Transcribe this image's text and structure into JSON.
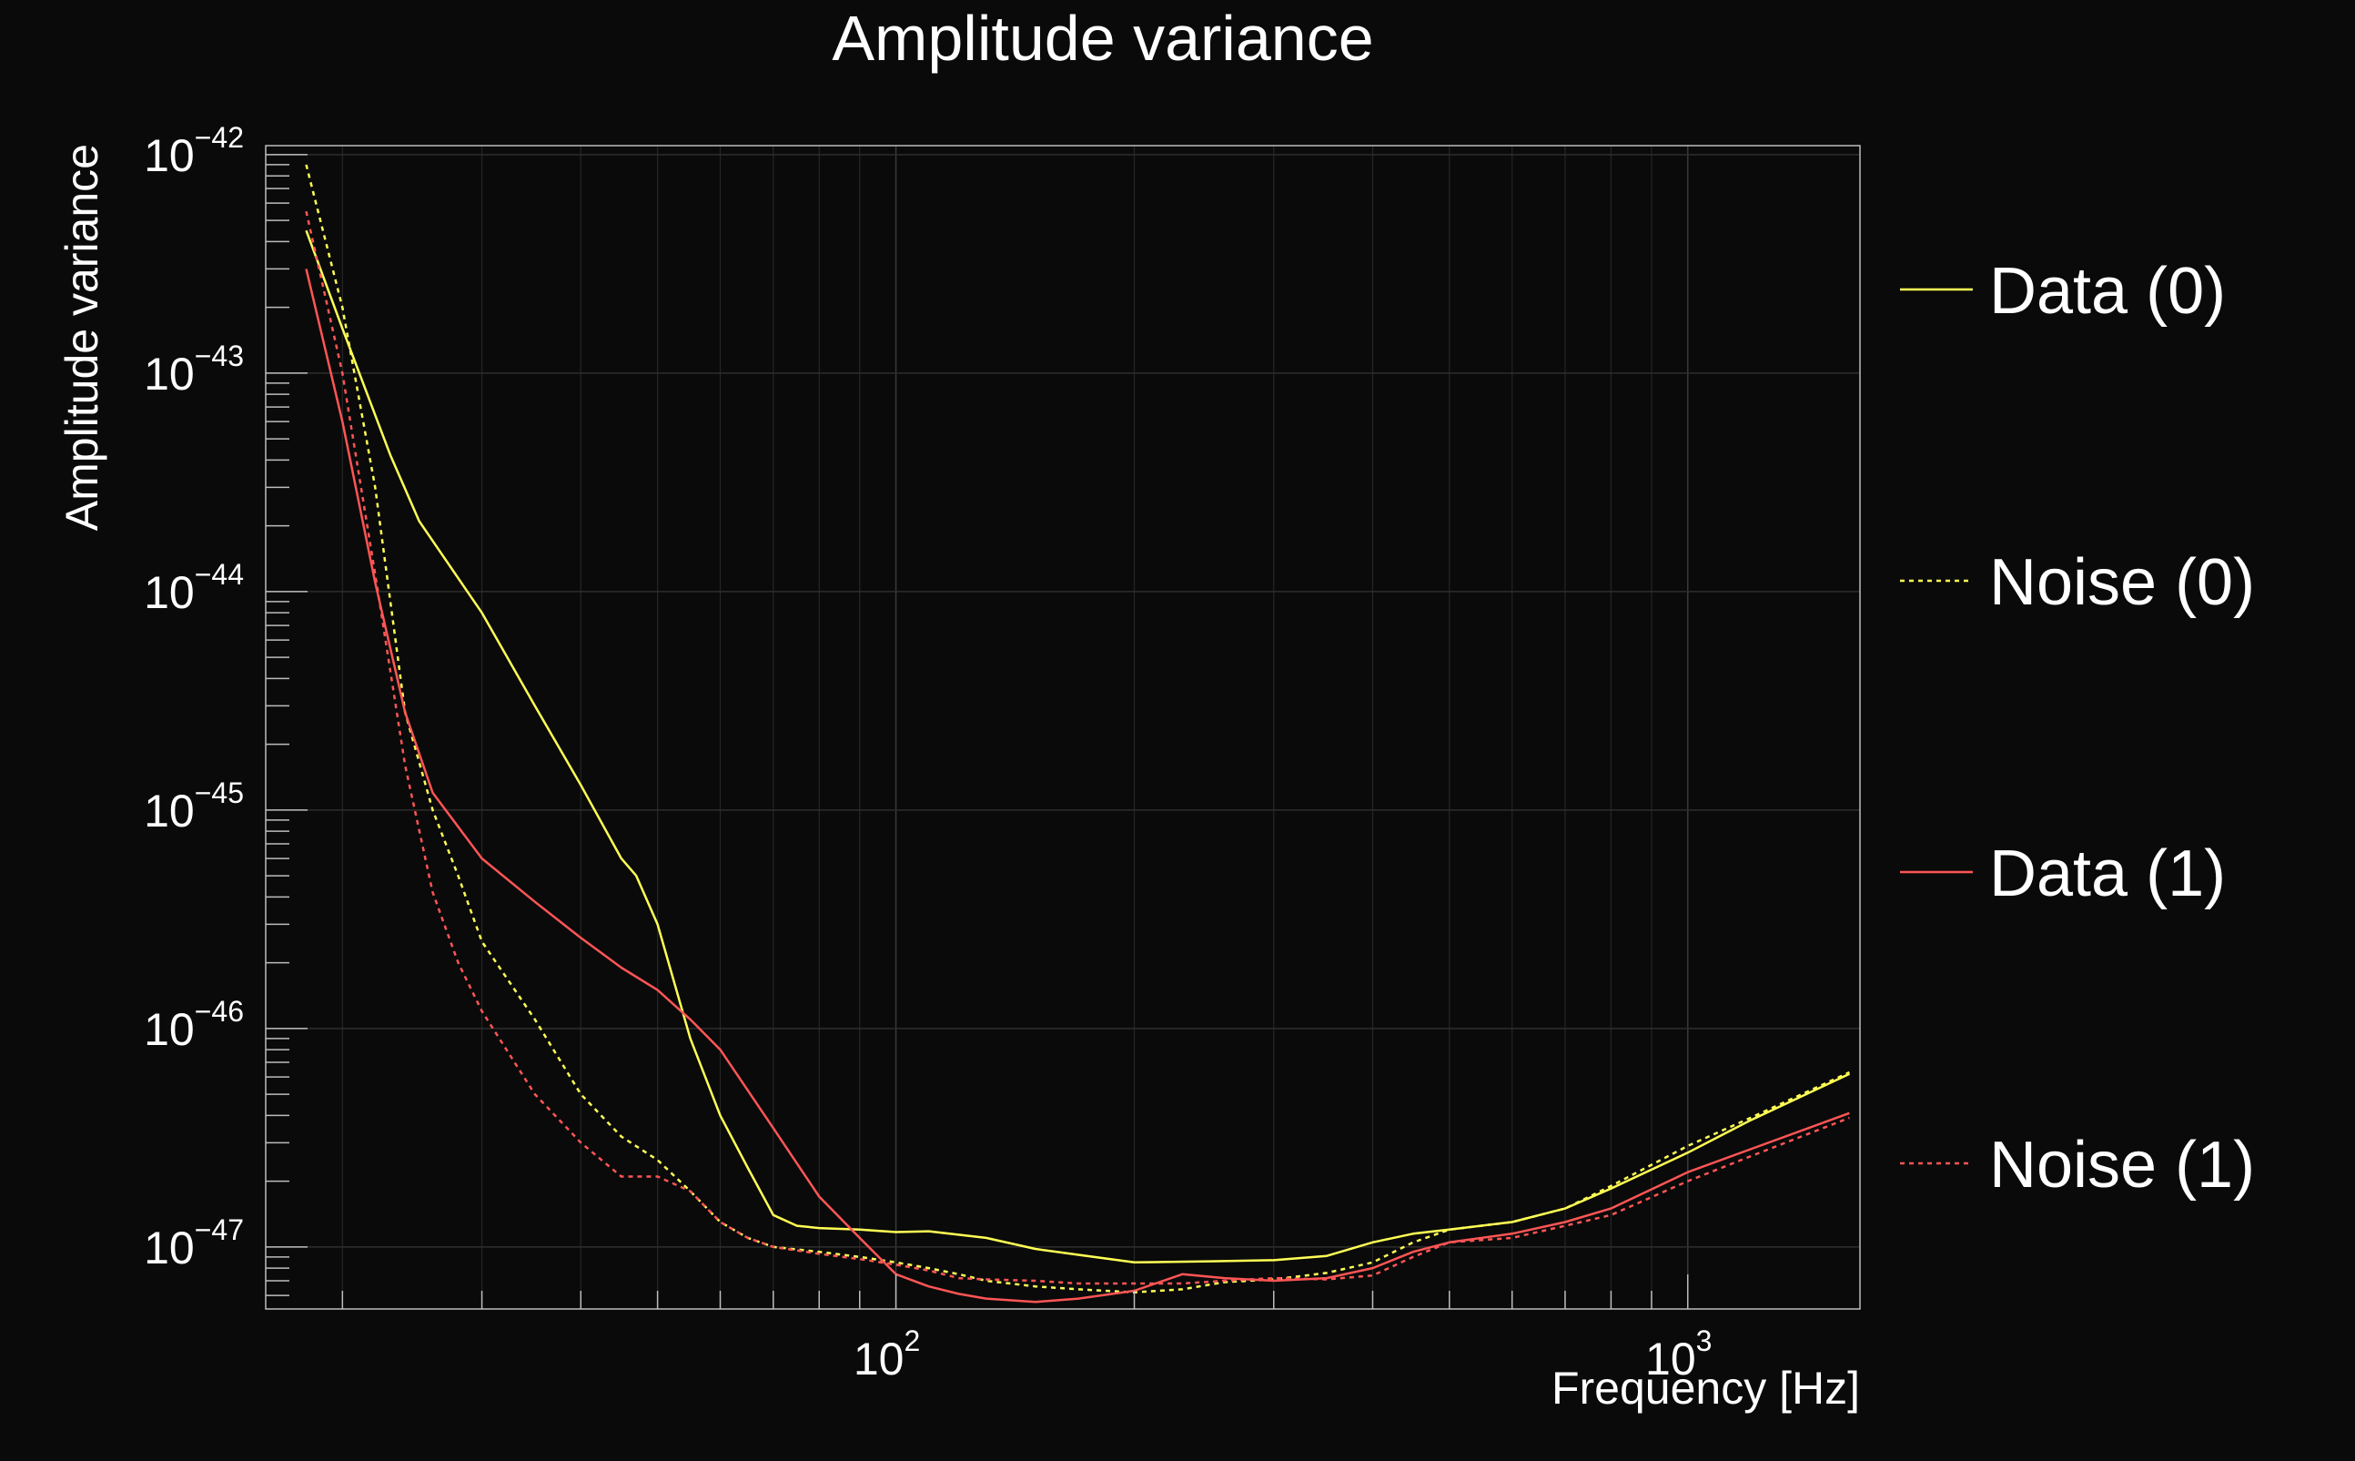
{
  "chart_data": {
    "type": "line",
    "title": "Amplitude variance",
    "xlabel": "Frequency [Hz]",
    "ylabel": "Amplitude variance",
    "x_scale": "log",
    "y_scale": "log",
    "xlim": [
      16,
      1650
    ],
    "ylim": [
      5.2e-48,
      1.1e-42
    ],
    "x_ticks": [
      {
        "value": 100,
        "base": "10",
        "exp": "2"
      },
      {
        "value": 1000,
        "base": "10",
        "exp": "3"
      }
    ],
    "y_ticks": [
      {
        "value": 1e-42,
        "base": "10",
        "exp": "−42"
      },
      {
        "value": 1e-43,
        "base": "10",
        "exp": "−43"
      },
      {
        "value": 1e-44,
        "base": "10",
        "exp": "−44"
      },
      {
        "value": 1e-45,
        "base": "10",
        "exp": "−45"
      },
      {
        "value": 1e-46,
        "base": "10",
        "exp": "−46"
      },
      {
        "value": 1e-47,
        "base": "10",
        "exp": "−47"
      }
    ],
    "grid": true,
    "legend_position": "right",
    "series": [
      {
        "name": "Data (0)",
        "color": "#ffff55",
        "dash": "solid",
        "x": [
          18,
          20,
          23,
          25,
          30,
          35,
          40,
          45,
          47,
          50,
          55,
          60,
          65,
          70,
          75,
          80,
          90,
          100,
          110,
          130,
          150,
          170,
          200,
          250,
          300,
          350,
          400,
          450,
          500,
          600,
          700,
          800,
          1000,
          1200,
          1600
        ],
        "y": [
          4.5e-43,
          1.6e-43,
          4.2e-44,
          2.1e-44,
          8e-45,
          3e-45,
          1.3e-45,
          6e-46,
          5e-46,
          3e-46,
          9e-47,
          4e-47,
          2.3e-47,
          1.4e-47,
          1.25e-47,
          1.22e-47,
          1.2e-47,
          1.17e-47,
          1.18e-47,
          1.1e-47,
          9.8e-48,
          9.2e-48,
          8.5e-48,
          8.6e-48,
          8.7e-48,
          9.1e-48,
          1.05e-47,
          1.15e-47,
          1.2e-47,
          1.3e-47,
          1.5e-47,
          1.85e-47,
          2.7e-47,
          3.8e-47,
          6.2e-47
        ]
      },
      {
        "name": "Noise (0)",
        "color": "#ffff55",
        "dash": "dotted",
        "x": [
          18,
          20,
          22,
          24,
          26,
          28,
          30,
          35,
          40,
          45,
          50,
          55,
          60,
          65,
          70,
          80,
          90,
          100,
          110,
          120,
          130,
          150,
          170,
          200,
          230,
          260,
          300,
          350,
          400,
          450,
          500,
          600,
          700,
          800,
          1000,
          1200,
          1600
        ],
        "y": [
          9e-43,
          2e-43,
          3e-44,
          2.8e-45,
          1e-45,
          5e-46,
          2.5e-46,
          1.1e-46,
          5e-47,
          3.2e-47,
          2.5e-47,
          1.8e-47,
          1.3e-47,
          1.1e-47,
          1e-47,
          9.5e-48,
          9e-48,
          8.5e-48,
          8e-48,
          7.5e-48,
          7e-48,
          6.6e-48,
          6.4e-48,
          6.2e-48,
          6.4e-48,
          6.9e-48,
          7.1e-48,
          7.6e-48,
          8.5e-48,
          1.05e-47,
          1.2e-47,
          1.3e-47,
          1.5e-47,
          1.9e-47,
          2.9e-47,
          3.9e-47,
          6.3e-47
        ]
      },
      {
        "name": "Data (1)",
        "color": "#ff5555",
        "dash": "solid",
        "x": [
          18,
          20,
          22,
          24,
          26,
          30,
          35,
          40,
          45,
          50,
          55,
          60,
          70,
          80,
          90,
          100,
          110,
          120,
          130,
          150,
          170,
          200,
          230,
          260,
          300,
          350,
          400,
          450,
          500,
          600,
          700,
          800,
          1000,
          1200,
          1600
        ],
        "y": [
          3e-43,
          6e-44,
          1.1e-44,
          2.8e-45,
          1.2e-45,
          6e-46,
          3.8e-46,
          2.6e-46,
          1.9e-46,
          1.5e-46,
          1.1e-46,
          8e-47,
          3.5e-47,
          1.7e-47,
          1.1e-47,
          7.5e-48,
          6.6e-48,
          6.1e-48,
          5.8e-48,
          5.6e-48,
          5.8e-48,
          6.3e-48,
          7.5e-48,
          7.2e-48,
          7e-48,
          7.2e-48,
          8e-48,
          9.5e-48,
          1.05e-47,
          1.15e-47,
          1.3e-47,
          1.5e-47,
          2.2e-47,
          2.8e-47,
          4.1e-47
        ]
      },
      {
        "name": "Noise (1)",
        "color": "#ff5555",
        "dash": "dotted",
        "x": [
          18,
          20,
          22,
          24,
          26,
          28,
          30,
          35,
          40,
          45,
          50,
          55,
          60,
          65,
          70,
          80,
          90,
          100,
          110,
          120,
          130,
          150,
          170,
          200,
          230,
          260,
          300,
          350,
          400,
          450,
          500,
          600,
          700,
          800,
          1000,
          1200,
          1600
        ],
        "y": [
          5.5e-43,
          1e-43,
          1.2e-44,
          1.6e-45,
          4.2e-46,
          2e-46,
          1.2e-46,
          5e-47,
          3e-47,
          2.1e-47,
          2.1e-47,
          1.8e-47,
          1.3e-47,
          1.1e-47,
          1e-47,
          9.3e-48,
          8.8e-48,
          8.3e-48,
          7.8e-48,
          7.2e-48,
          7.1e-48,
          7e-48,
          6.8e-48,
          6.8e-48,
          6.8e-48,
          7e-48,
          7.2e-48,
          7.1e-48,
          7.4e-48,
          9e-48,
          1.05e-47,
          1.1e-47,
          1.25e-47,
          1.4e-47,
          2e-47,
          2.6e-47,
          3.9e-47
        ]
      }
    ]
  }
}
